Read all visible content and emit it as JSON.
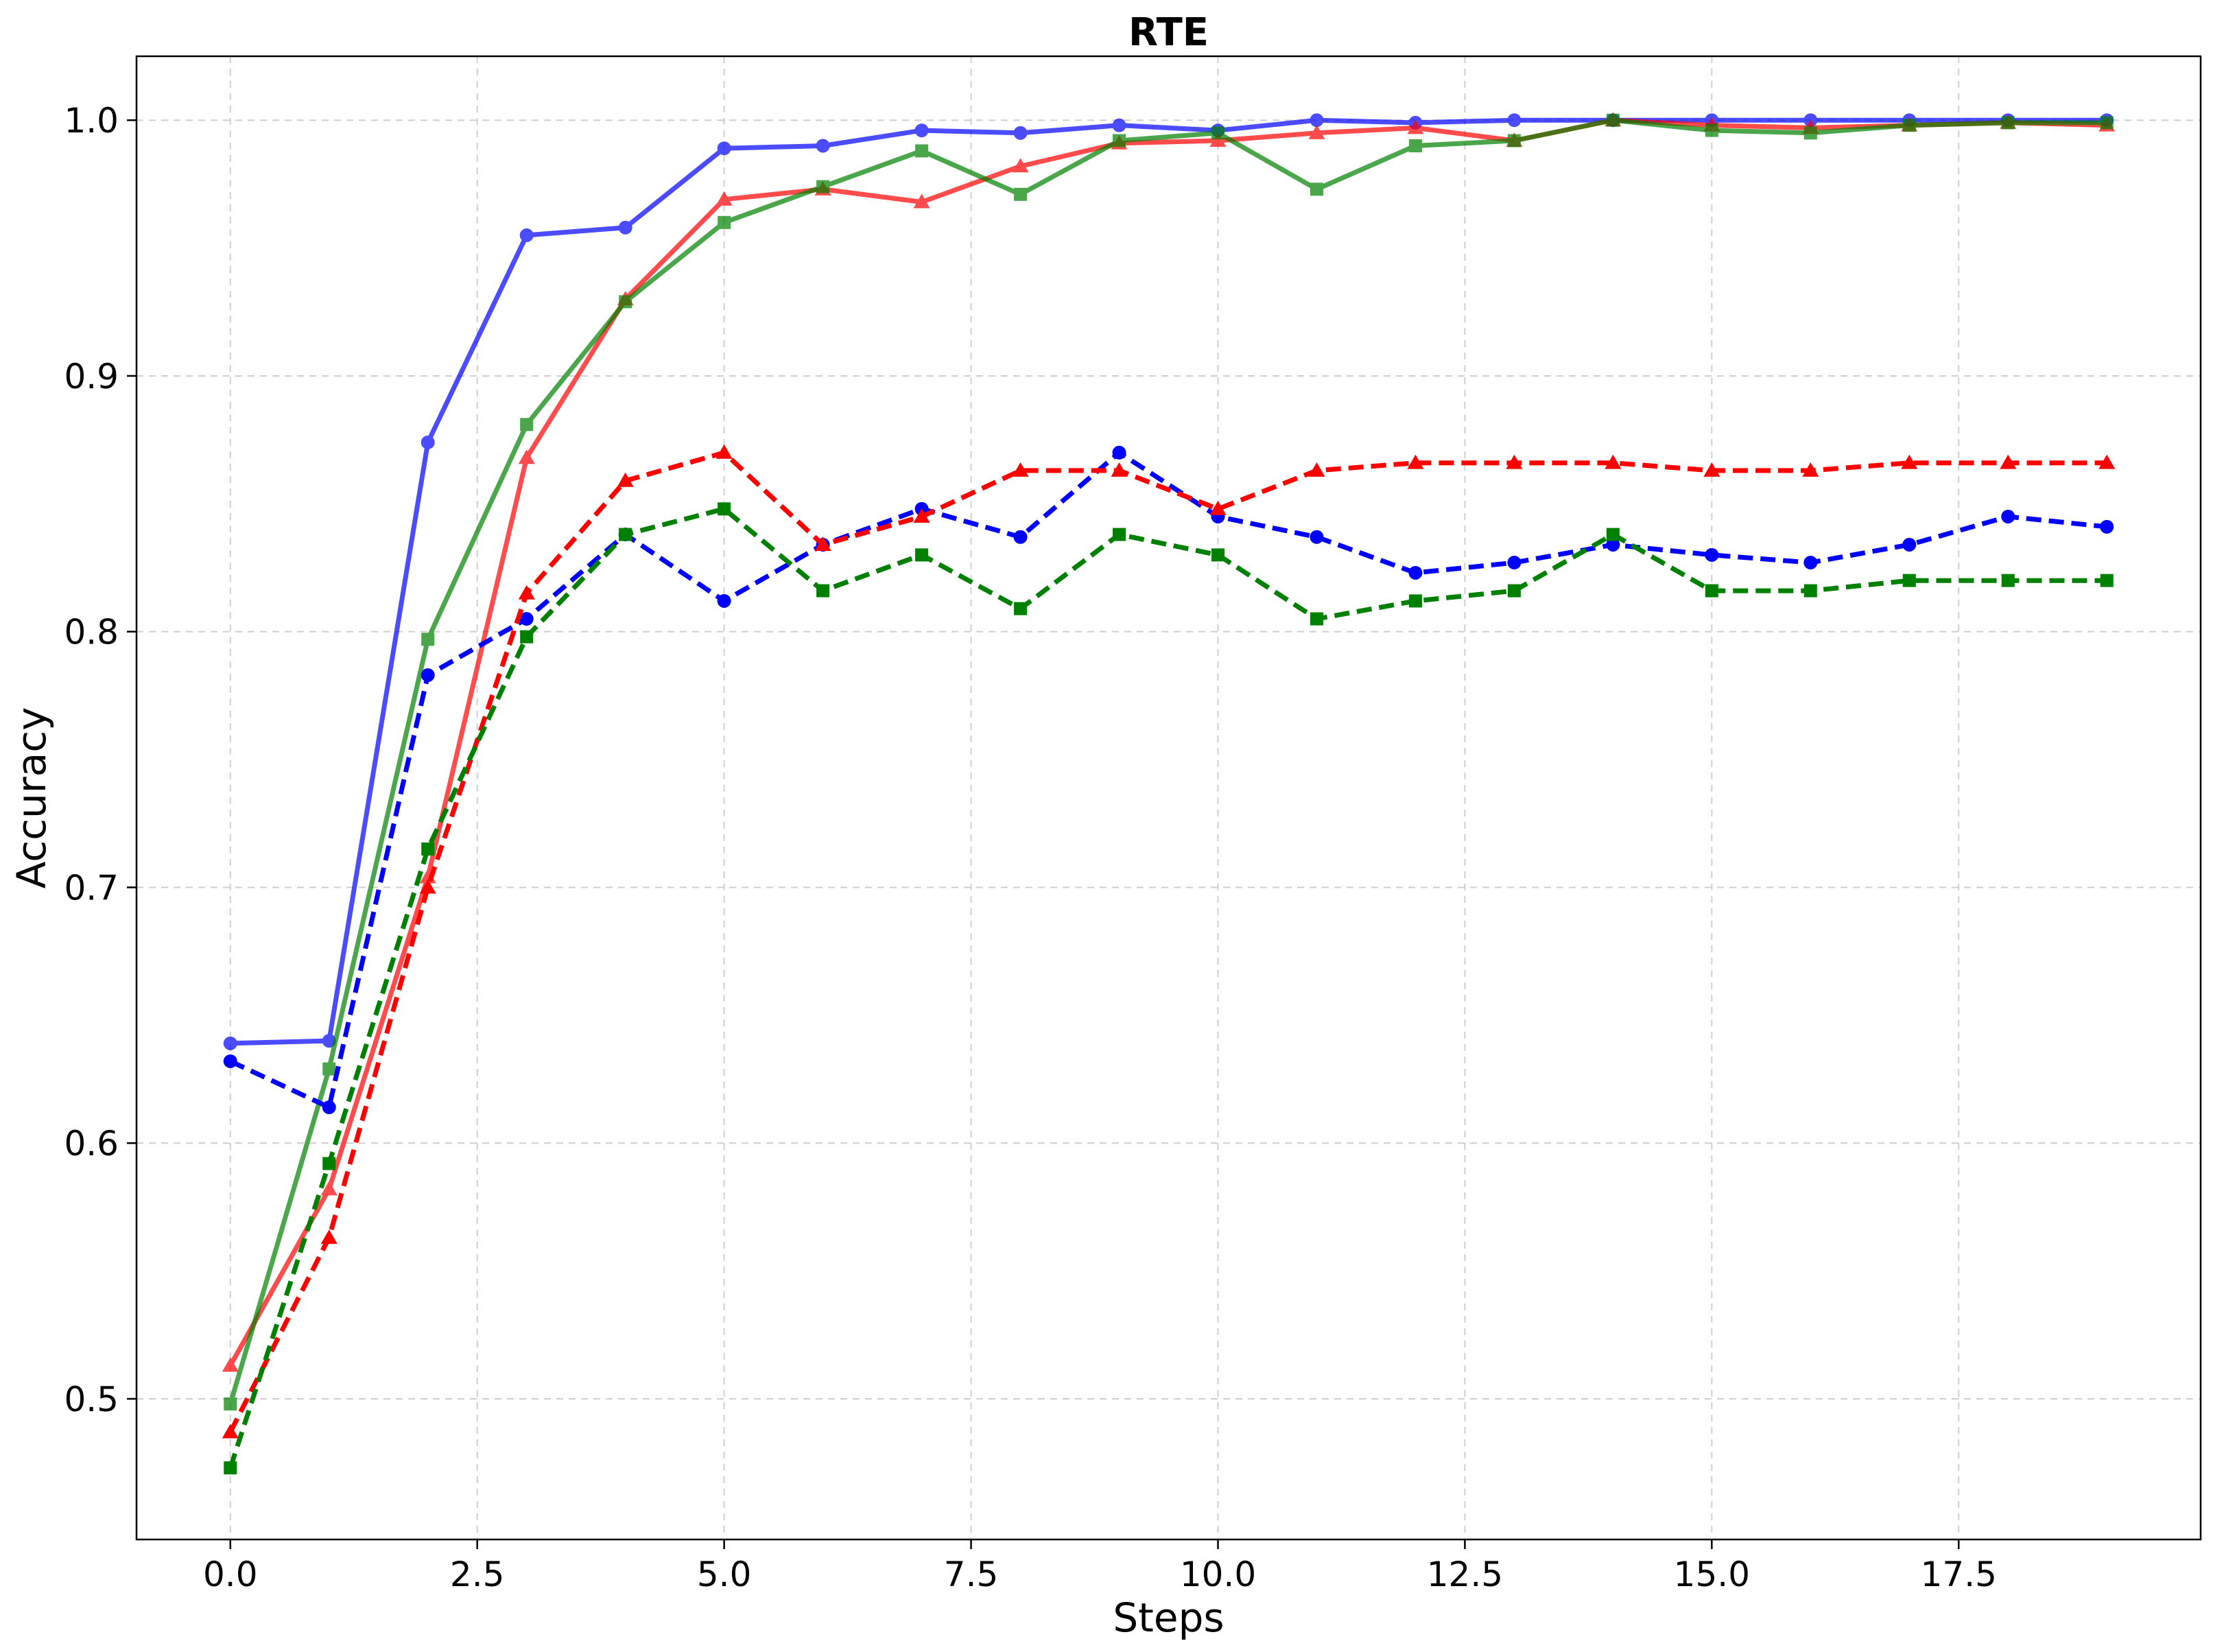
{
  "chart_data": {
    "type": "line",
    "title": "RTE",
    "xlabel": "Steps",
    "ylabel": "Accuracy",
    "xlim": [
      -0.95,
      19.95
    ],
    "ylim": [
      0.445,
      1.025
    ],
    "xticks": [
      0.0,
      2.5,
      5.0,
      7.5,
      10.0,
      12.5,
      15.0,
      17.5
    ],
    "xtick_labels": [
      "0.0",
      "2.5",
      "5.0",
      "7.5",
      "10.0",
      "12.5",
      "15.0",
      "17.5"
    ],
    "yticks": [
      0.5,
      0.6,
      0.7,
      0.8,
      0.9,
      1.0
    ],
    "ytick_labels": [
      "0.5",
      "0.6",
      "0.7",
      "0.8",
      "0.9",
      "1.0"
    ],
    "grid": true,
    "x": [
      0,
      1,
      2,
      3,
      4,
      5,
      6,
      7,
      8,
      9,
      10,
      11,
      12,
      13,
      14,
      15,
      16,
      17,
      18,
      19
    ],
    "series": [
      {
        "color": "#0000ff",
        "linestyle": "solid",
        "marker": "circle",
        "alpha": 0.7,
        "values": [
          0.639,
          0.64,
          0.874,
          0.955,
          0.958,
          0.989,
          0.99,
          0.996,
          0.995,
          0.998,
          0.996,
          1.0,
          0.999,
          1.0,
          1.0,
          1.0,
          1.0,
          1.0,
          1.0,
          1.0
        ]
      },
      {
        "color": "#ff0000",
        "linestyle": "solid",
        "marker": "triangle",
        "alpha": 0.7,
        "values": [
          0.513,
          0.582,
          0.704,
          0.868,
          0.93,
          0.969,
          0.973,
          0.968,
          0.982,
          0.991,
          0.992,
          0.995,
          0.997,
          0.992,
          1.0,
          0.998,
          0.997,
          0.998,
          0.999,
          0.998
        ]
      },
      {
        "color": "#008000",
        "linestyle": "solid",
        "marker": "square",
        "alpha": 0.7,
        "values": [
          0.498,
          0.629,
          0.797,
          0.881,
          0.929,
          0.96,
          0.974,
          0.988,
          0.971,
          0.992,
          0.995,
          0.973,
          0.99,
          0.992,
          1.0,
          0.996,
          0.995,
          0.998,
          0.999,
          0.999
        ]
      },
      {
        "color": "#0000ff",
        "linestyle": "dashed",
        "marker": "circle",
        "alpha": 1.0,
        "values": [
          0.632,
          0.614,
          0.783,
          0.805,
          0.838,
          0.812,
          0.834,
          0.848,
          0.837,
          0.87,
          0.845,
          0.837,
          0.823,
          0.827,
          0.834,
          0.83,
          0.827,
          0.834,
          0.845,
          0.841
        ]
      },
      {
        "color": "#ff0000",
        "linestyle": "dashed",
        "marker": "triangle",
        "alpha": 1.0,
        "values": [
          0.487,
          0.563,
          0.7,
          0.815,
          0.859,
          0.87,
          0.834,
          0.845,
          0.863,
          0.863,
          0.848,
          0.863,
          0.866,
          0.866,
          0.866,
          0.863,
          0.863,
          0.866,
          0.866,
          0.866
        ]
      },
      {
        "color": "#008000",
        "linestyle": "dashed",
        "marker": "square",
        "alpha": 1.0,
        "values": [
          0.473,
          0.592,
          0.715,
          0.798,
          0.838,
          0.848,
          0.816,
          0.83,
          0.809,
          0.838,
          0.83,
          0.805,
          0.812,
          0.816,
          0.838,
          0.816,
          0.816,
          0.82,
          0.82,
          0.82
        ]
      }
    ]
  }
}
